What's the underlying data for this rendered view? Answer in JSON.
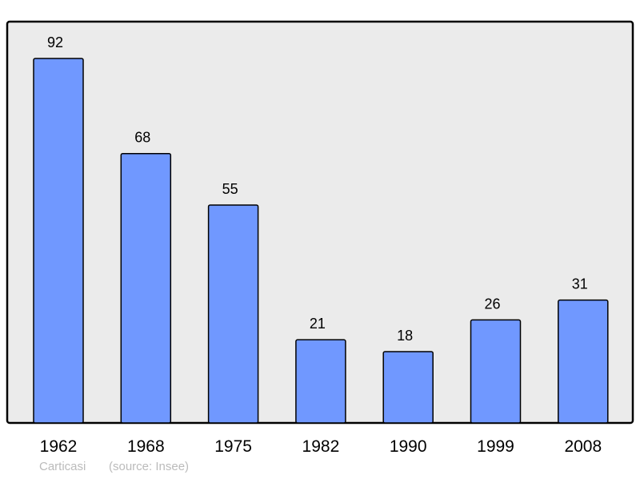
{
  "chart_data": {
    "type": "bar",
    "title": "",
    "xlabel": "",
    "ylabel": "",
    "categories": [
      "1962",
      "1968",
      "1975",
      "1982",
      "1990",
      "1999",
      "2008"
    ],
    "values": [
      92,
      68,
      55,
      21,
      18,
      26,
      31
    ],
    "ylim": [
      0,
      100
    ],
    "grid": false,
    "legend": "none",
    "data_labels": true,
    "colors": {
      "bar": "#7098ff",
      "plot_background": "#ebebeb",
      "border": "#000000"
    }
  },
  "footer": {
    "place": "Carticasi",
    "source": "(source: Insee)"
  }
}
